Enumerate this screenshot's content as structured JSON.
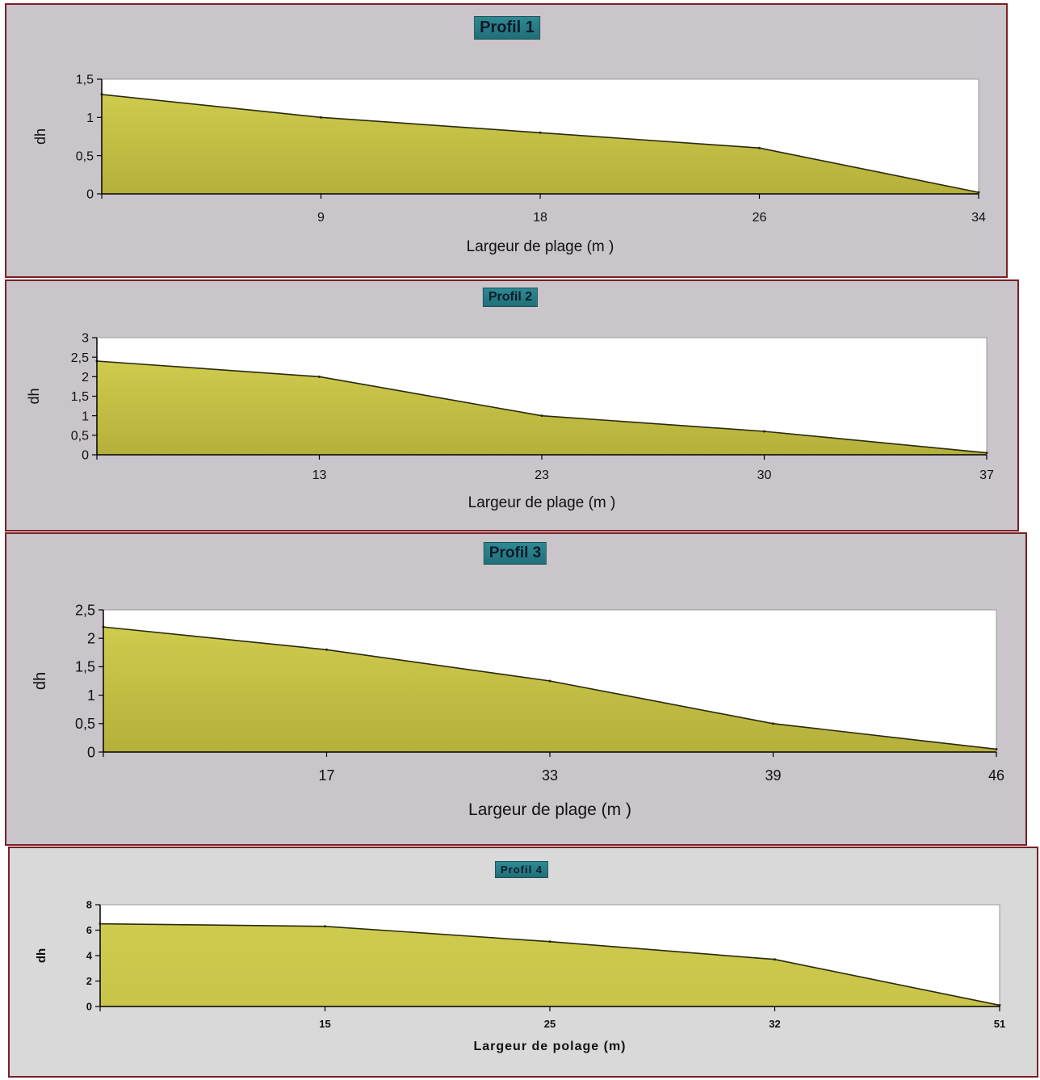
{
  "chart_data": [
    {
      "type": "area",
      "title": "Profil 1",
      "xlabel": "Largeur de plage (m )",
      "ylabel": "dh",
      "categories": [
        "",
        "9",
        "18",
        "26",
        "34"
      ],
      "values": [
        1.3,
        1.0,
        0.8,
        0.6,
        0.02
      ],
      "yticks": [
        "0",
        "0,5",
        "1",
        "1,5"
      ],
      "ylim": [
        0,
        1.5
      ],
      "colors": {
        "fill": "#b5b03a",
        "plot_bg": "#ffffff",
        "panel_bg": "#c9c5cb"
      }
    },
    {
      "type": "area",
      "title": "Profil 2",
      "xlabel": "Largeur de plage (m )",
      "ylabel": "dh",
      "categories": [
        "",
        "13",
        "23",
        "30",
        "37"
      ],
      "values": [
        2.4,
        2.0,
        1.0,
        0.6,
        0.05
      ],
      "yticks": [
        "0",
        "0,5",
        "1",
        "1,5",
        "2",
        "2,5",
        "3"
      ],
      "ylim": [
        0,
        3
      ],
      "colors": {
        "fill": "#b5b03a",
        "plot_bg": "#ffffff",
        "panel_bg": "#c9c5cb"
      }
    },
    {
      "type": "area",
      "title": "Profil 3",
      "xlabel": "Largeur de plage (m )",
      "ylabel": "dh",
      "categories": [
        "",
        "17",
        "33",
        "39",
        "46"
      ],
      "values": [
        2.2,
        1.8,
        1.25,
        0.5,
        0.05
      ],
      "yticks": [
        "0",
        "0,5",
        "1",
        "1,5",
        "2",
        "2,5"
      ],
      "ylim": [
        0,
        2.5
      ],
      "colors": {
        "fill": "#b5b03a",
        "plot_bg": "#ffffff",
        "panel_bg": "#c9c5cb"
      }
    },
    {
      "type": "area",
      "title": "Profil 4",
      "xlabel": "Largeur de polage (m)",
      "ylabel": "dh",
      "categories": [
        "",
        "15",
        "25",
        "32",
        "51"
      ],
      "values": [
        6.5,
        6.3,
        5.1,
        3.7,
        0.1
      ],
      "yticks": [
        "0",
        "2",
        "4",
        "6",
        "8"
      ],
      "ylim": [
        0,
        8
      ],
      "colors": {
        "fill": "#c9c44a",
        "plot_bg": "#ffffff",
        "panel_bg": "#d9d9d9"
      }
    }
  ]
}
